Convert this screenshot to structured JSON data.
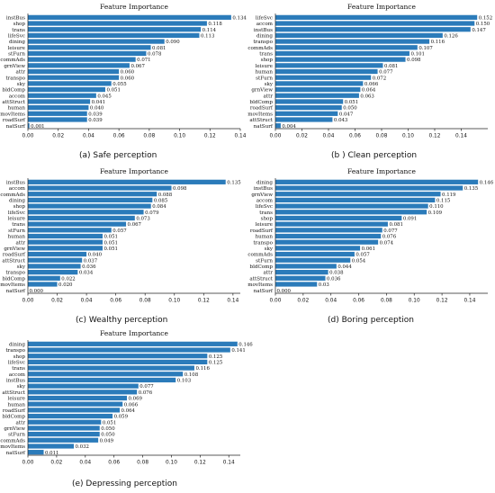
{
  "colors": {
    "bar": "#2b7bba",
    "axis": "#222222",
    "text": "#111111"
  },
  "chart_data": [
    {
      "type": "bar",
      "orientation": "horizontal",
      "title": "Feature Importance",
      "caption": "(a)  Safe perception",
      "xlim": [
        0,
        0.14
      ],
      "xticks": [
        0.0,
        0.02,
        0.04,
        0.06,
        0.08,
        0.1,
        0.12,
        0.14
      ],
      "xtick_labels": [
        "0.00",
        "0.02",
        "0.04",
        "0.06",
        "0.08",
        "0.10",
        "0.12",
        "0.14"
      ],
      "categories": [
        "instBus",
        "shop",
        "trans",
        "lifeSvc",
        "dining",
        "leisure",
        "stFurn",
        "commAds",
        "grnView",
        "attr",
        "transpo",
        "sky",
        "bldComp",
        "accom",
        "attStruct",
        "human",
        "movItems",
        "roadSurf",
        "natSurf"
      ],
      "values": [
        0.134,
        0.118,
        0.114,
        0.113,
        0.09,
        0.081,
        0.078,
        0.071,
        0.067,
        0.06,
        0.06,
        0.055,
        0.051,
        0.045,
        0.041,
        0.04,
        0.039,
        0.039,
        0.001
      ],
      "labels": [
        "0.134",
        "0.118",
        "0.114",
        "0.113",
        "0.090",
        "0.081",
        "0.078",
        "0.071",
        "0.067",
        "0.060",
        "0.060",
        "0.055",
        "0.051",
        "0.045",
        "0.041",
        "0.040",
        "0.039",
        "0.039",
        "0.001"
      ]
    },
    {
      "type": "bar",
      "orientation": "horizontal",
      "title": "Feature Importance",
      "caption": "(b  )  Clean perception",
      "xlim": [
        0,
        0.16
      ],
      "xticks": [
        0.0,
        0.02,
        0.04,
        0.06,
        0.08,
        0.1,
        0.12,
        0.14
      ],
      "xtick_labels": [
        "0.00",
        "0.02",
        "0.04",
        "0.06",
        "0.08",
        "0.10",
        "0.12",
        "0.14"
      ],
      "categories": [
        "lifeSvc",
        "accom",
        "instBus",
        "dining",
        "transpo",
        "commAds",
        "trans",
        "shop",
        "leisure",
        "human",
        "stFurn",
        "sky",
        "grnView",
        "attr",
        "bldComp",
        "roadSurf",
        "movItems",
        "attStruct",
        "natSurf"
      ],
      "values": [
        0.152,
        0.15,
        0.147,
        0.126,
        0.116,
        0.107,
        0.101,
        0.098,
        0.081,
        0.077,
        0.072,
        0.066,
        0.064,
        0.063,
        0.051,
        0.05,
        0.047,
        0.043,
        0.004
      ],
      "labels": [
        "0.152",
        "0.150",
        "0.147",
        "0.126",
        "0.116",
        "0.107",
        "0.101",
        "0.098",
        "0.081",
        "0.077",
        "0.072",
        "0.066",
        "0.064",
        "0.063",
        "0.051",
        "0.050",
        "0.047",
        "0.043",
        "0.004"
      ]
    },
    {
      "type": "bar",
      "orientation": "horizontal",
      "title": "Feature Importance",
      "caption": "(c)  Wealthy perception",
      "xlim": [
        0,
        0.145
      ],
      "xticks": [
        0.0,
        0.02,
        0.04,
        0.06,
        0.08,
        0.1,
        0.12,
        0.14
      ],
      "xtick_labels": [
        "0.00",
        "0.02",
        "0.04",
        "0.06",
        "0.08",
        "0.10",
        "0.12",
        "0.14"
      ],
      "categories": [
        "instBus",
        "accom",
        "commAds",
        "dining",
        "shop",
        "lifeSvc",
        "leisure",
        "trans",
        "stFurn",
        "human",
        "attr",
        "grnView",
        "roadSurf",
        "attStruct",
        "sky",
        "transpo",
        "bldComp",
        "movItems",
        "natSurf"
      ],
      "values": [
        0.135,
        0.098,
        0.088,
        0.085,
        0.084,
        0.079,
        0.073,
        0.067,
        0.057,
        0.051,
        0.051,
        0.051,
        0.04,
        0.037,
        0.036,
        0.034,
        0.022,
        0.02,
        0.0
      ],
      "labels": [
        "0.135",
        "0.098",
        "0.088",
        "0.085",
        "0.084",
        "0.079",
        "0.073",
        "0.067",
        "0.057",
        "0.051",
        "0.051",
        "0.051",
        "0.040",
        "0.037",
        "0.036",
        "0.034",
        "0.022",
        "0.020",
        "0.000"
      ]
    },
    {
      "type": "bar",
      "orientation": "horizontal",
      "title": "Feature Importance",
      "caption": "(d)  Boring perception",
      "xlim": [
        0,
        0.153
      ],
      "xticks": [
        0.0,
        0.02,
        0.04,
        0.06,
        0.08,
        0.1,
        0.12,
        0.14
      ],
      "xtick_labels": [
        "0.00",
        "0.02",
        "0.04",
        "0.06",
        "0.08",
        "0.10",
        "0.12",
        "0.14"
      ],
      "categories": [
        "dining",
        "instBus",
        "grnView",
        "accom",
        "lifeSvc",
        "trans",
        "shop",
        "leisure",
        "roadSurf",
        "human",
        "transpo",
        "sky",
        "commAds",
        "stFurn",
        "bldComp",
        "attr",
        "attStruct",
        "movItems",
        "natSurf"
      ],
      "values": [
        0.146,
        0.135,
        0.119,
        0.115,
        0.11,
        0.109,
        0.091,
        0.081,
        0.077,
        0.076,
        0.074,
        0.061,
        0.057,
        0.054,
        0.044,
        0.038,
        0.036,
        0.03,
        0.0
      ],
      "labels": [
        "0.146",
        "0.135",
        "0.119",
        "0.115",
        "0.110",
        "0.109",
        "0.091",
        "0.081",
        "0.077",
        "0.076",
        "0.074",
        "0.061",
        "0.057",
        "0.054",
        "0.044",
        "0.038",
        "0.036",
        "0.03",
        "0.000"
      ]
    },
    {
      "type": "bar",
      "orientation": "horizontal",
      "title": "Feature Importance",
      "caption": "(e)  Depressing perception",
      "xlim": [
        0,
        0.148
      ],
      "xticks": [
        0.0,
        0.02,
        0.04,
        0.06,
        0.08,
        0.1,
        0.12,
        0.14
      ],
      "xtick_labels": [
        "0.00",
        "0.02",
        "0.04",
        "0.06",
        "0.08",
        "0.10",
        "0.12",
        "0.14"
      ],
      "categories": [
        "dining",
        "transpo",
        "shop",
        "lifeSvc",
        "trans",
        "accom",
        "instBus",
        "sky",
        "attStruct",
        "leisure",
        "human",
        "roadSurf",
        "bldComp",
        "attr",
        "grnView",
        "stFurn",
        "commAds",
        "movItems",
        "natSurf"
      ],
      "values": [
        0.146,
        0.141,
        0.125,
        0.125,
        0.116,
        0.108,
        0.103,
        0.077,
        0.076,
        0.069,
        0.066,
        0.064,
        0.059,
        0.051,
        0.05,
        0.05,
        0.049,
        0.032,
        0.011
      ],
      "labels": [
        "0.146",
        "0.141",
        "0.125",
        "0.125",
        "0.116",
        "0.108",
        "0.103",
        "0.077",
        "0.076",
        "0.069",
        "0.066",
        "0.064",
        "0.059",
        "0.051",
        "0.050",
        "0.050",
        "0.049",
        "0.032",
        "0.011"
      ]
    }
  ]
}
